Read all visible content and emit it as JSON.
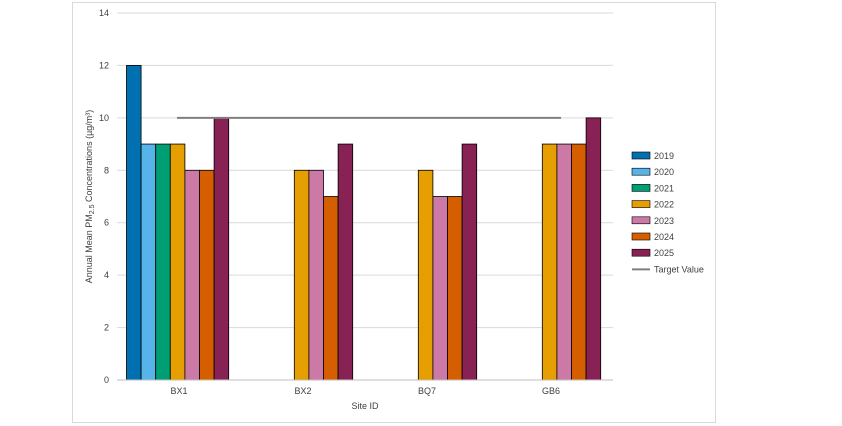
{
  "chart_data": {
    "type": "bar",
    "categories": [
      "BX1",
      "BX2",
      "BQ7",
      "GB6"
    ],
    "series": [
      {
        "name": "2019",
        "color": "#0070B0",
        "values": [
          12,
          null,
          null,
          null
        ]
      },
      {
        "name": "2020",
        "color": "#56B4E9",
        "values": [
          9,
          null,
          null,
          null
        ]
      },
      {
        "name": "2021",
        "color": "#009E73",
        "values": [
          9,
          null,
          null,
          null
        ]
      },
      {
        "name": "2022",
        "color": "#E69F00",
        "values": [
          9,
          8,
          8,
          9
        ]
      },
      {
        "name": "2023",
        "color": "#CC79A7",
        "values": [
          8,
          8,
          7,
          9
        ]
      },
      {
        "name": "2024",
        "color": "#D55E00",
        "values": [
          8,
          7,
          7,
          9
        ]
      },
      {
        "name": "2025",
        "color": "#882255",
        "values": [
          10,
          9,
          9,
          10
        ]
      }
    ],
    "target": {
      "name": "Target Value",
      "value": 10,
      "color": "#7f7f7f"
    },
    "xlabel": "Site ID",
    "ylabel_parts": [
      "Annual Mean PM",
      "2.5",
      " Concentrations (µg/m³)"
    ],
    "ylim": [
      0,
      14
    ],
    "yticks": [
      0,
      2,
      4,
      6,
      8,
      10,
      12,
      14
    ],
    "grid": true,
    "legend_position": "right"
  }
}
